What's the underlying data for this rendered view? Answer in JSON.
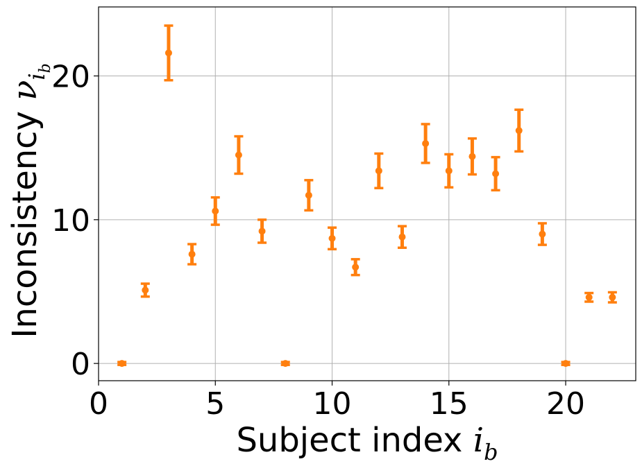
{
  "chart_data": {
    "type": "scatter",
    "subtype": "errorbar",
    "title": "",
    "xlabel": {
      "text": "Subject index ",
      "symbol": "i",
      "subscript": "b"
    },
    "ylabel": {
      "text": "Inconsistency ",
      "symbol": "ν",
      "subscript": "i",
      "subsubscript": "b"
    },
    "xlim": [
      0,
      23
    ],
    "ylim": [
      -1.2,
      24.8
    ],
    "xticks": [
      0,
      5,
      10,
      15,
      20
    ],
    "yticks": [
      0,
      10,
      20
    ],
    "grid": true,
    "legend": "none",
    "color": "#ff7f0e",
    "series": [
      {
        "x": [
          1,
          2,
          3,
          4,
          5,
          6,
          7,
          8,
          9,
          10,
          11,
          12,
          13,
          14,
          15,
          16,
          17,
          18,
          19,
          20,
          21,
          22
        ],
        "y": [
          0,
          5.1,
          21.6,
          7.6,
          10.6,
          14.5,
          9.2,
          0,
          11.7,
          8.7,
          6.7,
          13.4,
          8.8,
          15.3,
          13.4,
          14.4,
          13.2,
          16.2,
          9.0,
          0,
          4.6,
          4.6
        ],
        "err": [
          0.1,
          0.45,
          1.9,
          0.7,
          0.95,
          1.3,
          0.8,
          0.1,
          1.05,
          0.75,
          0.55,
          1.2,
          0.75,
          1.35,
          1.15,
          1.25,
          1.15,
          1.45,
          0.75,
          0.1,
          0.3,
          0.35
        ]
      }
    ]
  }
}
